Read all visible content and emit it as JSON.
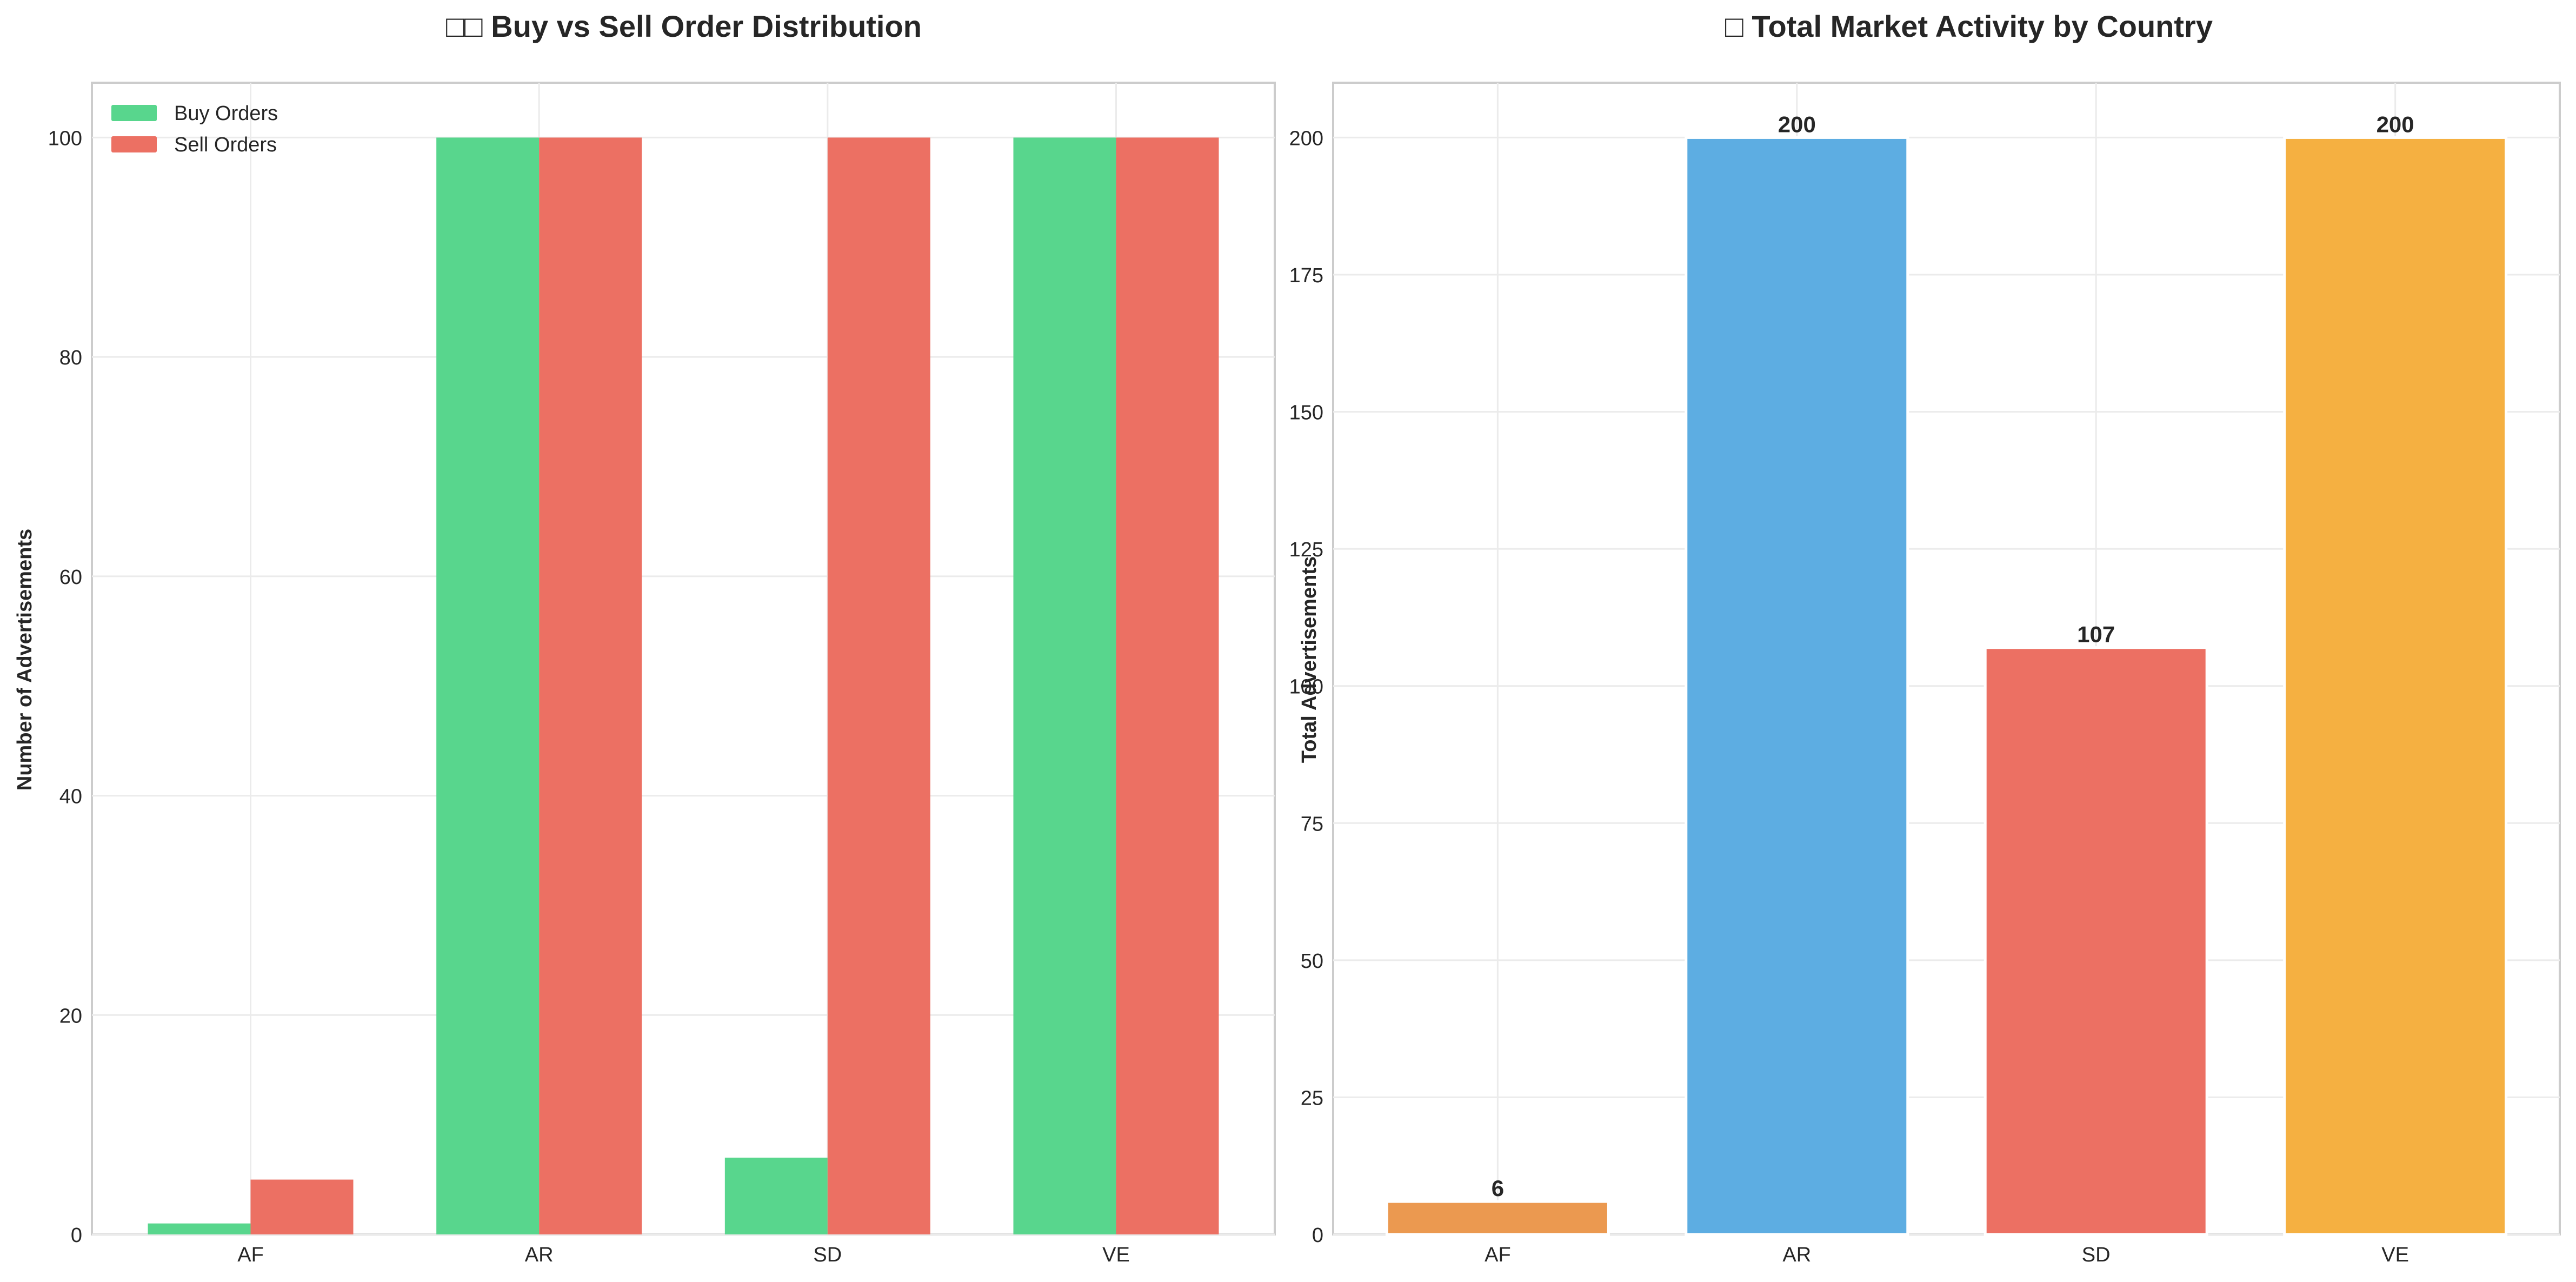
{
  "chart_data": [
    {
      "type": "bar",
      "title": "□□ Buy vs Sell Order Distribution",
      "xlabel": "",
      "ylabel": "Number of Advertisements",
      "categories": [
        "AF",
        "AR",
        "SD",
        "VE"
      ],
      "series": [
        {
          "name": "Buy Orders",
          "values": [
            1,
            100,
            7,
            100
          ],
          "color": "#58d68d"
        },
        {
          "name": "Sell Orders",
          "values": [
            5,
            100,
            100,
            100
          ],
          "color": "#ec7063"
        }
      ],
      "ylim": [
        0,
        105
      ],
      "yticks": [
        0,
        20,
        40,
        60,
        80,
        100
      ],
      "grid": true,
      "legend": "top-left"
    },
    {
      "type": "bar",
      "title": "□ Total Market Activity by Country",
      "xlabel": "",
      "ylabel": "Total Advertisements",
      "categories": [
        "AF",
        "AR",
        "SD",
        "VE"
      ],
      "values": [
        6,
        200,
        107,
        200
      ],
      "data_labels": [
        "6",
        "200",
        "107",
        "200"
      ],
      "colors": [
        "#eb9950",
        "#5dade2",
        "#ec7063",
        "#f5b041"
      ],
      "ylim": [
        0,
        210
      ],
      "yticks": [
        0,
        25,
        50,
        75,
        100,
        125,
        150,
        175,
        200
      ],
      "grid": true
    }
  ]
}
